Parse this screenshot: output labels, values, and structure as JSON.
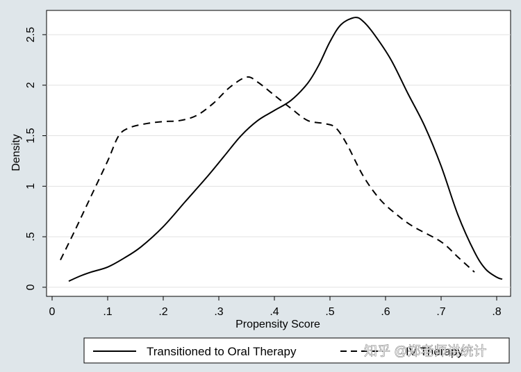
{
  "chart_data": {
    "type": "line",
    "title": "",
    "xlabel": "Propensity Score",
    "ylabel": "Density",
    "xlim": [
      -0.01,
      0.825
    ],
    "ylim": [
      -0.09,
      2.74
    ],
    "x_ticks": [
      0,
      0.1,
      0.2,
      0.3,
      0.4,
      0.5,
      0.6,
      0.7,
      0.8
    ],
    "x_tick_labels": [
      "0",
      ".1",
      ".2",
      ".3",
      ".4",
      ".5",
      ".6",
      ".7",
      ".8"
    ],
    "y_ticks": [
      0,
      0.5,
      1,
      1.5,
      2,
      2.5
    ],
    "y_tick_labels": [
      "0",
      ".5",
      "1",
      "1.5",
      "2",
      "2.5"
    ],
    "grid": true,
    "legend_position": "bottom",
    "series": [
      {
        "name": "Transitioned to Oral Therapy",
        "style": "solid",
        "color": "#000000",
        "points": [
          [
            0.03,
            0.06
          ],
          [
            0.05,
            0.11
          ],
          [
            0.07,
            0.15
          ],
          [
            0.1,
            0.2
          ],
          [
            0.13,
            0.29
          ],
          [
            0.16,
            0.4
          ],
          [
            0.2,
            0.6
          ],
          [
            0.24,
            0.85
          ],
          [
            0.28,
            1.1
          ],
          [
            0.31,
            1.3
          ],
          [
            0.34,
            1.5
          ],
          [
            0.37,
            1.65
          ],
          [
            0.4,
            1.75
          ],
          [
            0.43,
            1.85
          ],
          [
            0.46,
            2.02
          ],
          [
            0.48,
            2.2
          ],
          [
            0.5,
            2.43
          ],
          [
            0.52,
            2.6
          ],
          [
            0.545,
            2.67
          ],
          [
            0.56,
            2.63
          ],
          [
            0.58,
            2.5
          ],
          [
            0.61,
            2.25
          ],
          [
            0.64,
            1.92
          ],
          [
            0.67,
            1.6
          ],
          [
            0.7,
            1.2
          ],
          [
            0.73,
            0.72
          ],
          [
            0.76,
            0.35
          ],
          [
            0.78,
            0.18
          ],
          [
            0.8,
            0.1
          ],
          [
            0.81,
            0.08
          ]
        ]
      },
      {
        "name": "Remained on IV Therapy",
        "style": "dashed",
        "color": "#000000",
        "points": [
          [
            0.015,
            0.27
          ],
          [
            0.04,
            0.55
          ],
          [
            0.07,
            0.9
          ],
          [
            0.1,
            1.25
          ],
          [
            0.12,
            1.5
          ],
          [
            0.14,
            1.58
          ],
          [
            0.17,
            1.62
          ],
          [
            0.2,
            1.64
          ],
          [
            0.23,
            1.65
          ],
          [
            0.26,
            1.7
          ],
          [
            0.29,
            1.82
          ],
          [
            0.32,
            1.98
          ],
          [
            0.35,
            2.08
          ],
          [
            0.37,
            2.03
          ],
          [
            0.4,
            1.9
          ],
          [
            0.43,
            1.77
          ],
          [
            0.46,
            1.65
          ],
          [
            0.49,
            1.62
          ],
          [
            0.51,
            1.58
          ],
          [
            0.53,
            1.42
          ],
          [
            0.56,
            1.1
          ],
          [
            0.59,
            0.87
          ],
          [
            0.62,
            0.72
          ],
          [
            0.65,
            0.6
          ],
          [
            0.7,
            0.45
          ],
          [
            0.73,
            0.3
          ],
          [
            0.76,
            0.15
          ]
        ]
      }
    ],
    "legend": [
      {
        "label": "Transitioned to Oral Therapy",
        "style": "solid"
      },
      {
        "label": "IV Therapy",
        "style": "dashed"
      }
    ]
  },
  "watermark": "知乎 @郑老师讲统计"
}
